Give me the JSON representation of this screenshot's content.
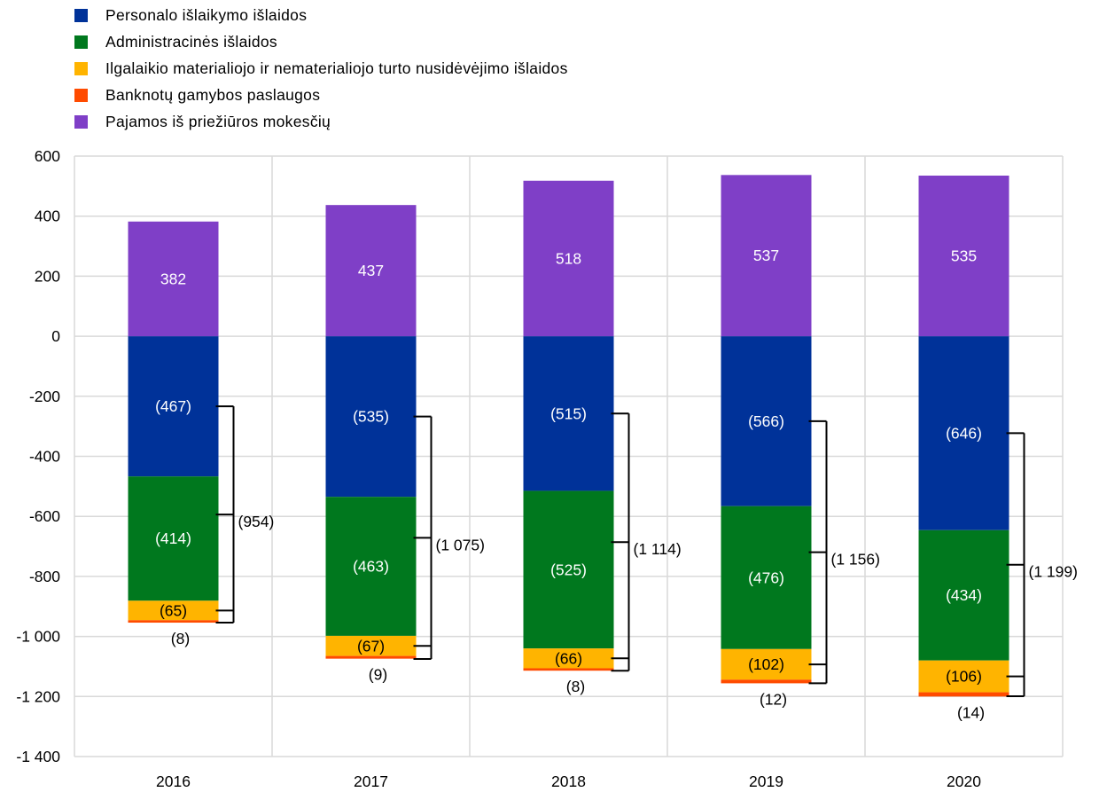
{
  "chart_data": {
    "type": "bar",
    "stacked": true,
    "categories": [
      "2016",
      "2017",
      "2018",
      "2019",
      "2020"
    ],
    "ylim": [
      -1400,
      600
    ],
    "yticks": [
      600,
      400,
      200,
      0,
      -200,
      -400,
      -600,
      -800,
      -1000,
      -1200,
      -1400
    ],
    "ytick_labels": [
      "600",
      "400",
      "200",
      "0",
      "-200",
      "-400",
      "-600",
      "-800",
      "-1 000",
      "-1 200",
      "-1 400"
    ],
    "grid": true,
    "legend_position": "top-left",
    "series": [
      {
        "name": "Personalo išlaikymo išlaidos",
        "color": "#003299",
        "values": [
          -467,
          -535,
          -515,
          -566,
          -646
        ],
        "labels": [
          "(467)",
          "(535)",
          "(515)",
          "(566)",
          "(646)"
        ],
        "label_color": "#ffffff"
      },
      {
        "name": "Administracinės išlaidos",
        "color": "#00781E",
        "values": [
          -414,
          -463,
          -525,
          -476,
          -434
        ],
        "labels": [
          "(414)",
          "(463)",
          "(525)",
          "(476)",
          "(434)"
        ],
        "label_color": "#ffffff"
      },
      {
        "name": "Ilgalaikio materialiojo ir nematerialiojo turto nusidėvėjimo išlaidos",
        "color": "#FFB400",
        "values": [
          -65,
          -67,
          -66,
          -102,
          -106
        ],
        "labels": [
          "(65)",
          "(67)",
          "(66)",
          "(102)",
          "(106)"
        ],
        "label_color": "#000000"
      },
      {
        "name": "Banknotų gamybos paslaugos",
        "color": "#FF4B00",
        "values": [
          -8,
          -9,
          -8,
          -12,
          -14
        ],
        "labels": [
          "(8)",
          "(9)",
          "(8)",
          "(12)",
          "(14)"
        ],
        "label_color": "#000000"
      },
      {
        "name": "Pajamos iš priežiūros mokesčių",
        "color": "#7F3FC7",
        "values": [
          382,
          437,
          518,
          537,
          535
        ],
        "labels": [
          "382",
          "437",
          "518",
          "537",
          "535"
        ],
        "label_color": "#ffffff"
      }
    ],
    "totals": {
      "values": [
        -954,
        -1075,
        -1114,
        -1156,
        -1199
      ],
      "labels": [
        "(954)",
        "(1 075)",
        "(1 114)",
        "(1 156)",
        "(1 199)"
      ]
    }
  }
}
